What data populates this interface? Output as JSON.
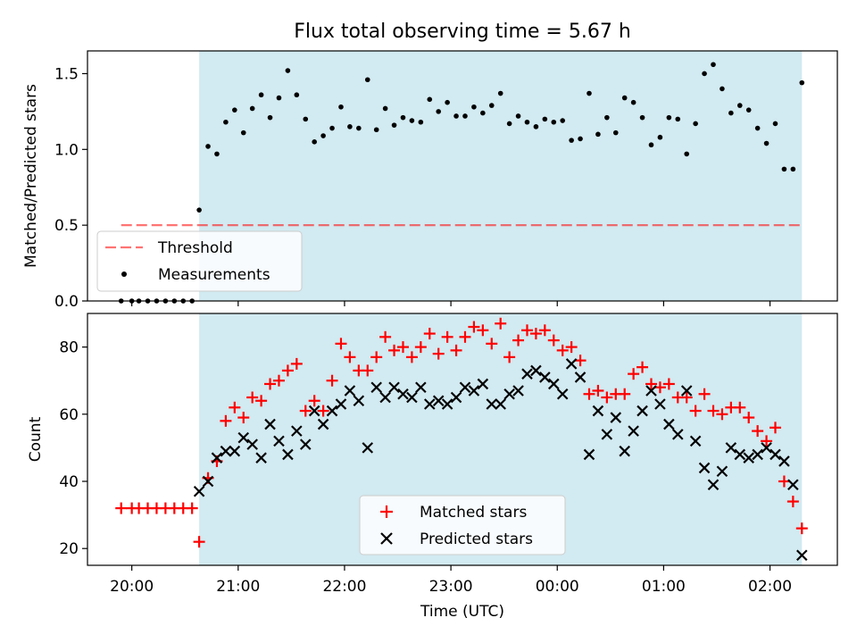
{
  "title": "Flux total observing time = 5.67 h",
  "colors": {
    "shade": "#add8e6",
    "threshold": "#ff0000",
    "matched": "#ff0000",
    "predicted": "#000000",
    "measure": "#000000"
  },
  "chart_data": [
    {
      "type": "scatter",
      "panel": "top",
      "title": "Flux total observing time = 5.67 h",
      "xlabel": "",
      "ylabel": "Matched/Predicted stars",
      "xlim": [
        "19:35",
        "02:38"
      ],
      "ylim": [
        0,
        1.65
      ],
      "yticks": [
        0.0,
        0.5,
        1.0,
        1.5
      ],
      "ytick_labels": [
        "0.0",
        "0.5",
        "1.0",
        "1.5"
      ],
      "shaded_interval": [
        "20:38",
        "02:18"
      ],
      "legend_position": "lower-left",
      "threshold": {
        "name": "Threshold",
        "y": 0.5,
        "x": [
          "19:54",
          "02:18"
        ]
      },
      "series": [
        {
          "name": "Measurements",
          "x": [
            "19:54",
            "20:00",
            "20:04",
            "20:09",
            "20:14",
            "20:19",
            "20:24",
            "20:29",
            "20:34",
            "20:38",
            "20:43",
            "20:48",
            "20:53",
            "20:58",
            "21:03",
            "21:08",
            "21:13",
            "21:18",
            "21:23",
            "21:28",
            "21:33",
            "21:38",
            "21:43",
            "21:48",
            "21:53",
            "21:58",
            "22:03",
            "22:08",
            "22:13",
            "22:18",
            "22:23",
            "22:28",
            "22:33",
            "22:38",
            "22:43",
            "22:48",
            "22:53",
            "22:58",
            "23:03",
            "23:08",
            "23:13",
            "23:18",
            "23:23",
            "23:28",
            "23:33",
            "23:38",
            "23:43",
            "23:48",
            "23:53",
            "23:58",
            "00:03",
            "00:08",
            "00:13",
            "00:18",
            "00:23",
            "00:28",
            "00:33",
            "00:38",
            "00:43",
            "00:48",
            "00:53",
            "00:58",
            "01:03",
            "01:08",
            "01:13",
            "01:18",
            "01:23",
            "01:28",
            "01:33",
            "01:38",
            "01:43",
            "01:48",
            "01:53",
            "01:58",
            "02:03",
            "02:08",
            "02:13",
            "02:18"
          ],
          "y": [
            0.0,
            0.0,
            0.0,
            0.0,
            0.0,
            0.0,
            0.0,
            0.0,
            0.0,
            0.6,
            1.02,
            0.97,
            1.18,
            1.26,
            1.11,
            1.27,
            1.36,
            1.21,
            1.34,
            1.52,
            1.36,
            1.2,
            1.05,
            1.09,
            1.14,
            1.28,
            1.15,
            1.14,
            1.46,
            1.13,
            1.27,
            1.16,
            1.21,
            1.19,
            1.18,
            1.33,
            1.25,
            1.31,
            1.22,
            1.22,
            1.28,
            1.24,
            1.29,
            1.37,
            1.17,
            1.22,
            1.18,
            1.15,
            1.2,
            1.18,
            1.19,
            1.06,
            1.07,
            1.37,
            1.1,
            1.21,
            1.11,
            1.34,
            1.31,
            1.21,
            1.03,
            1.08,
            1.21,
            1.2,
            0.97,
            1.17,
            1.5,
            1.56,
            1.4,
            1.24,
            1.29,
            1.26,
            1.14,
            1.04,
            1.17,
            0.87,
            0.87,
            1.44
          ]
        }
      ]
    },
    {
      "type": "scatter",
      "panel": "bottom",
      "xlabel": "Time (UTC)",
      "ylabel": "Count",
      "xlim": [
        "19:35",
        "02:38"
      ],
      "ylim": [
        15,
        90
      ],
      "yticks": [
        20,
        40,
        60,
        80
      ],
      "ytick_labels": [
        "20",
        "40",
        "60",
        "80"
      ],
      "xticks": [
        "20:00",
        "21:00",
        "22:00",
        "23:00",
        "00:00",
        "01:00",
        "02:00"
      ],
      "shaded_interval": [
        "20:38",
        "02:18"
      ],
      "legend_position": "lower-center",
      "series": [
        {
          "name": "Matched stars",
          "marker": "+",
          "x": [
            "19:54",
            "20:00",
            "20:04",
            "20:09",
            "20:14",
            "20:19",
            "20:24",
            "20:29",
            "20:34",
            "20:38",
            "20:43",
            "20:48",
            "20:53",
            "20:58",
            "21:03",
            "21:08",
            "21:13",
            "21:18",
            "21:23",
            "21:28",
            "21:33",
            "21:38",
            "21:43",
            "21:48",
            "21:53",
            "21:58",
            "22:03",
            "22:08",
            "22:13",
            "22:18",
            "22:23",
            "22:28",
            "22:33",
            "22:38",
            "22:43",
            "22:48",
            "22:53",
            "22:58",
            "23:03",
            "23:08",
            "23:13",
            "23:18",
            "23:23",
            "23:28",
            "23:33",
            "23:38",
            "23:43",
            "23:48",
            "23:53",
            "23:58",
            "00:03",
            "00:08",
            "00:13",
            "00:18",
            "00:23",
            "00:28",
            "00:33",
            "00:38",
            "00:43",
            "00:48",
            "00:53",
            "00:58",
            "01:03",
            "01:08",
            "01:13",
            "01:18",
            "01:23",
            "01:28",
            "01:33",
            "01:38",
            "01:43",
            "01:48",
            "01:53",
            "01:58",
            "02:03",
            "02:08",
            "02:13",
            "02:18"
          ],
          "y": [
            32,
            32,
            32,
            32,
            32,
            32,
            32,
            32,
            32,
            22,
            41,
            46,
            58,
            62,
            59,
            65,
            64,
            69,
            70,
            73,
            75,
            61,
            64,
            61,
            70,
            81,
            77,
            73,
            73,
            77,
            83,
            79,
            80,
            77,
            80,
            84,
            78,
            83,
            79,
            83,
            86,
            85,
            81,
            87,
            77,
            82,
            85,
            84,
            85,
            82,
            79,
            80,
            76,
            66,
            67,
            65,
            66,
            66,
            72,
            74,
            69,
            68,
            69,
            65,
            65,
            61,
            66,
            61,
            60,
            62,
            62,
            59,
            55,
            52,
            56,
            40,
            34,
            26
          ]
        },
        {
          "name": "Predicted stars",
          "marker": "x",
          "x": [
            "20:38",
            "20:43",
            "20:48",
            "20:53",
            "20:58",
            "21:03",
            "21:08",
            "21:13",
            "21:18",
            "21:23",
            "21:28",
            "21:33",
            "21:38",
            "21:43",
            "21:48",
            "21:53",
            "21:58",
            "22:03",
            "22:08",
            "22:13",
            "22:18",
            "22:23",
            "22:28",
            "22:33",
            "22:38",
            "22:43",
            "22:48",
            "22:53",
            "22:58",
            "23:03",
            "23:08",
            "23:13",
            "23:18",
            "23:23",
            "23:28",
            "23:33",
            "23:38",
            "23:43",
            "23:48",
            "23:53",
            "23:58",
            "00:03",
            "00:08",
            "00:13",
            "00:18",
            "00:23",
            "00:28",
            "00:33",
            "00:38",
            "00:43",
            "00:48",
            "00:53",
            "00:58",
            "01:03",
            "01:08",
            "01:13",
            "01:18",
            "01:23",
            "01:28",
            "01:33",
            "01:38",
            "01:43",
            "01:48",
            "01:53",
            "01:58",
            "02:03",
            "02:08",
            "02:13",
            "02:18"
          ],
          "y": [
            37,
            40,
            47,
            49,
            49,
            53,
            51,
            47,
            57,
            52,
            48,
            55,
            51,
            61,
            57,
            61,
            63,
            67,
            64,
            50,
            68,
            65,
            68,
            66,
            65,
            68,
            63,
            64,
            63,
            65,
            68,
            67,
            69,
            63,
            63,
            66,
            67,
            72,
            73,
            71,
            69,
            66,
            75,
            71,
            48,
            61,
            54,
            59,
            49,
            55,
            61,
            67,
            63,
            57,
            54,
            67,
            52,
            44,
            39,
            43,
            50,
            48,
            47,
            48,
            50,
            48,
            46,
            39,
            18
          ]
        }
      ]
    }
  ]
}
